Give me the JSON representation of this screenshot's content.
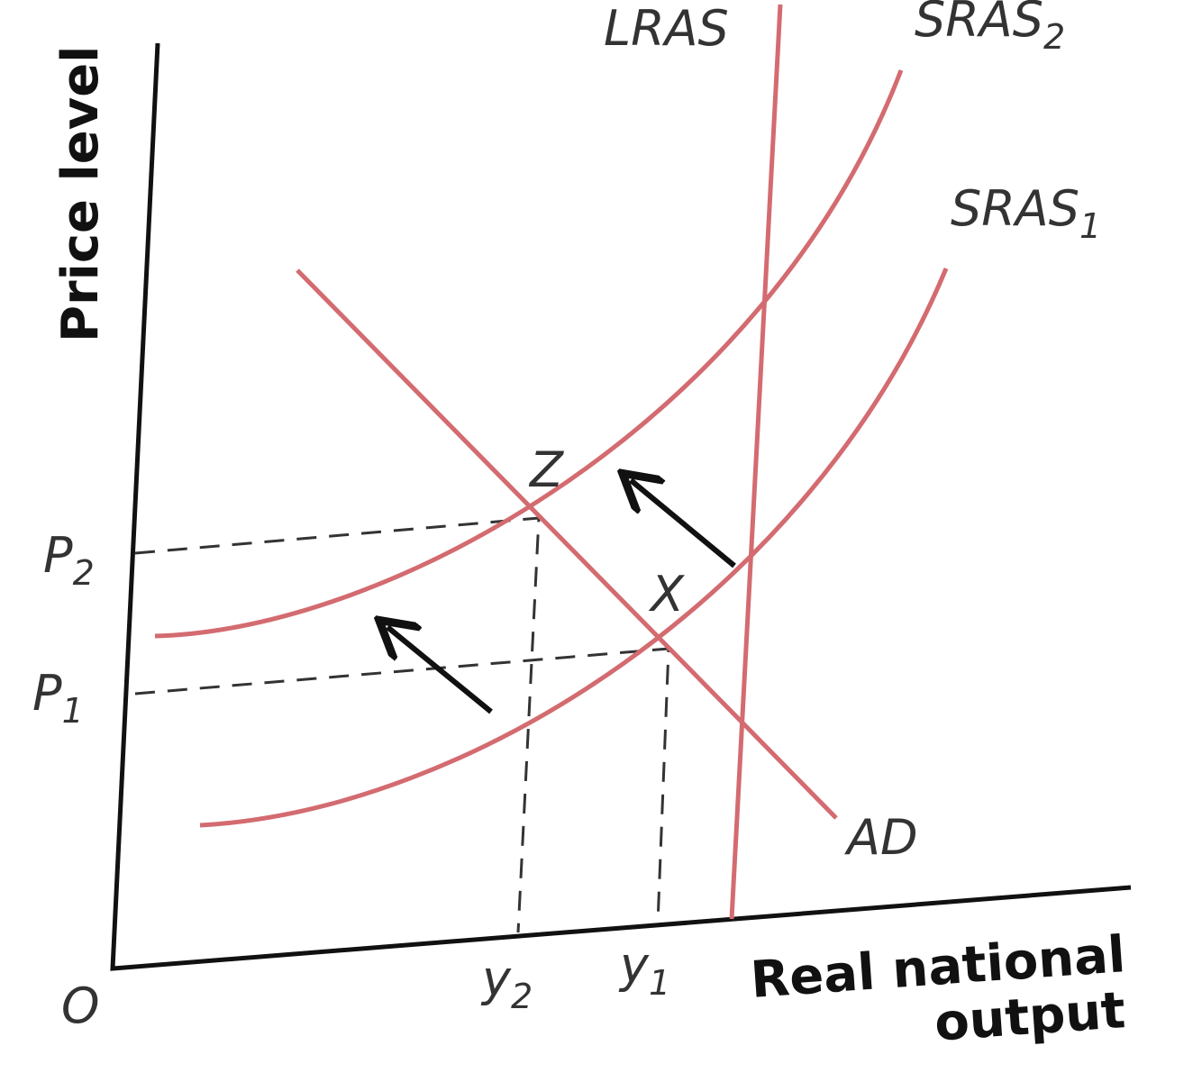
{
  "axes": {
    "y_label": "Price level",
    "x_label": [
      "Real national",
      "output"
    ],
    "origin": "O"
  },
  "curves": {
    "lras": {
      "label": "LRAS"
    },
    "sras2": {
      "label": "SRAS",
      "subscript": "2"
    },
    "sras1": {
      "label": "SRAS",
      "subscript": "1"
    },
    "ad": {
      "label": "AD"
    }
  },
  "points": {
    "z": "Z",
    "x": "X"
  },
  "price_levels": {
    "p2": {
      "label": "P",
      "subscript": "2"
    },
    "p1": {
      "label": "P",
      "subscript": "1"
    }
  },
  "outputs": {
    "y2": {
      "label": "y",
      "subscript": "2"
    },
    "y1": {
      "label": "y",
      "subscript": "1"
    }
  }
}
